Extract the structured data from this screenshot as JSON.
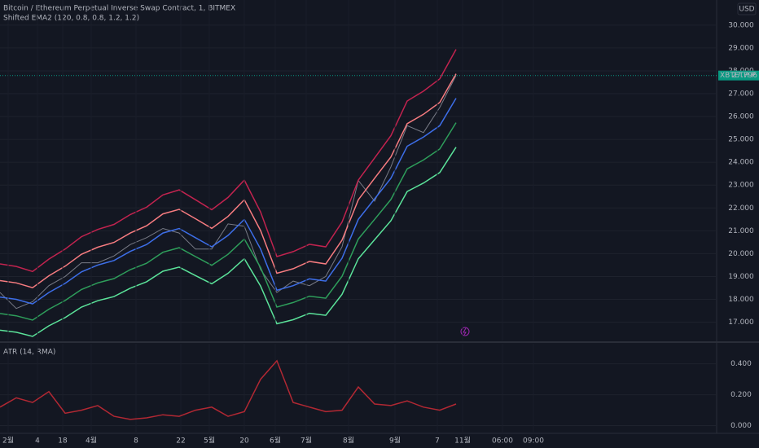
{
  "chart_data": [
    {
      "type": "line",
      "title": "Bitcoin / Ethereum Perpetual Inverse Swap Contract, 1, BITMEX",
      "subtitle": "Shifted EMA2 (120, 0.8, 0.8, 1.2, 1.2)",
      "currency": "USD",
      "price_tag": {
        "symbol": "XBTETH.P",
        "value": 27.796,
        "color": "#089981"
      },
      "x": [
        0,
        1,
        2,
        3,
        4,
        5,
        6,
        7,
        8,
        9,
        10,
        11,
        12,
        13,
        14,
        15,
        16,
        17,
        18,
        19,
        20,
        21,
        22,
        23,
        24,
        25,
        26,
        27,
        28
      ],
      "xlim": [
        0,
        44
      ],
      "ylim": [
        16.2,
        31.1
      ],
      "yticks": [
        {
          "value": 17,
          "label": "17.000"
        },
        {
          "value": 18,
          "label": "18.000"
        },
        {
          "value": 19,
          "label": "19.000"
        },
        {
          "value": 20,
          "label": "20.000"
        },
        {
          "value": 21,
          "label": "21.000"
        },
        {
          "value": 22,
          "label": "22.000"
        },
        {
          "value": 23,
          "label": "23.000"
        },
        {
          "value": 24,
          "label": "24.000"
        },
        {
          "value": 25,
          "label": "25.000"
        },
        {
          "value": 26,
          "label": "26.000"
        },
        {
          "value": 27,
          "label": "27.000"
        },
        {
          "value": 28,
          "label": "28.000"
        },
        {
          "value": 29,
          "label": "29.000"
        },
        {
          "value": 30,
          "label": "30.000"
        }
      ],
      "grid": true,
      "series": [
        {
          "color": "#787b86",
          "values": [
            18.3,
            17.6,
            17.9,
            18.6,
            19.0,
            19.6,
            19.6,
            19.9,
            20.4,
            20.7,
            21.1,
            20.9,
            20.2,
            20.2,
            21.3,
            21.2,
            19.3,
            18.3,
            18.8,
            18.6,
            19.0,
            20.3,
            23.2,
            22.3,
            23.8,
            25.6,
            25.3,
            26.4,
            27.8
          ]
        },
        {
          "color": "#c2234f",
          "values": [
            19.55,
            19.44,
            19.22,
            19.76,
            20.2,
            20.74,
            21.06,
            21.28,
            21.71,
            22.03,
            22.57,
            22.79,
            22.36,
            21.92,
            22.46,
            23.22,
            21.82,
            19.87,
            20.09,
            20.41,
            20.3,
            21.38,
            23.22,
            24.19,
            25.16,
            26.68,
            27.11,
            27.65,
            28.94
          ]
        },
        {
          "color": "#f77c80",
          "values": [
            18.82,
            18.72,
            18.51,
            19.03,
            19.45,
            19.97,
            20.28,
            20.49,
            20.9,
            21.22,
            21.74,
            21.94,
            21.53,
            21.11,
            21.63,
            22.36,
            21.01,
            19.14,
            19.34,
            19.66,
            19.55,
            20.59,
            22.36,
            23.3,
            24.23,
            25.69,
            26.1,
            26.62,
            27.87
          ]
        },
        {
          "color": "#3d6ee8",
          "values": [
            18.1,
            18.0,
            17.8,
            18.3,
            18.7,
            19.2,
            19.5,
            19.7,
            20.1,
            20.4,
            20.9,
            21.1,
            20.7,
            20.3,
            20.8,
            21.5,
            20.2,
            18.4,
            18.6,
            18.9,
            18.8,
            19.8,
            21.5,
            22.4,
            23.3,
            24.7,
            25.1,
            25.6,
            26.8
          ]
        },
        {
          "color": "#2e9e5b",
          "values": [
            17.38,
            17.28,
            17.09,
            17.57,
            17.95,
            18.43,
            18.72,
            18.91,
            19.3,
            19.58,
            20.06,
            20.26,
            19.87,
            19.49,
            19.97,
            20.64,
            19.39,
            17.66,
            17.86,
            18.14,
            18.05,
            19.01,
            20.64,
            21.5,
            22.37,
            23.71,
            24.1,
            24.58,
            25.73
          ]
        },
        {
          "color": "#5be39a",
          "values": [
            16.65,
            16.56,
            16.38,
            16.84,
            17.2,
            17.66,
            17.94,
            18.12,
            18.49,
            18.77,
            19.23,
            19.41,
            19.04,
            18.68,
            19.14,
            19.78,
            18.58,
            16.93,
            17.11,
            17.39,
            17.3,
            18.22,
            19.78,
            20.61,
            21.44,
            22.72,
            23.09,
            23.55,
            24.66
          ]
        }
      ]
    },
    {
      "type": "line",
      "title": "ATR (14, RMA)",
      "x": [
        0,
        1,
        2,
        3,
        4,
        5,
        6,
        7,
        8,
        9,
        10,
        11,
        12,
        13,
        14,
        15,
        16,
        17,
        18,
        19,
        20,
        21,
        22,
        23,
        24,
        25,
        26,
        27,
        28
      ],
      "xlim": [
        0,
        44
      ],
      "xticks": [
        {
          "value": 0.5,
          "label": "2월"
        },
        {
          "value": 2.3,
          "label": "4"
        },
        {
          "value": 3.85,
          "label": "18"
        },
        {
          "value": 5.6,
          "label": "4월"
        },
        {
          "value": 8.35,
          "label": "8"
        },
        {
          "value": 11.1,
          "label": "22"
        },
        {
          "value": 12.85,
          "label": "5월"
        },
        {
          "value": 15,
          "label": "20"
        },
        {
          "value": 16.9,
          "label": "6월"
        },
        {
          "value": 18.8,
          "label": "7월"
        },
        {
          "value": 21.4,
          "label": "8월"
        },
        {
          "value": 24.25,
          "label": "9월"
        },
        {
          "value": 26.85,
          "label": "7"
        },
        {
          "value": 28.4,
          "label": "11월"
        },
        {
          "value": 30.85,
          "label": "06:00"
        },
        {
          "value": 32.75,
          "label": "09:00"
        }
      ],
      "ylim": [
        -0.05,
        0.53
      ],
      "yticks": [
        {
          "value": 0,
          "label": "0.000"
        },
        {
          "value": 0.2,
          "label": "0.200"
        },
        {
          "value": 0.4,
          "label": "0.400"
        }
      ],
      "grid": true,
      "series": [
        {
          "color": "#b22833",
          "values": [
            0.12,
            0.18,
            0.15,
            0.22,
            0.08,
            0.1,
            0.13,
            0.06,
            0.04,
            0.05,
            0.07,
            0.06,
            0.1,
            0.12,
            0.06,
            0.09,
            0.3,
            0.42,
            0.15,
            0.12,
            0.09,
            0.1,
            0.25,
            0.14,
            0.13,
            0.16,
            0.12,
            0.1,
            0.14
          ]
        }
      ]
    }
  ]
}
